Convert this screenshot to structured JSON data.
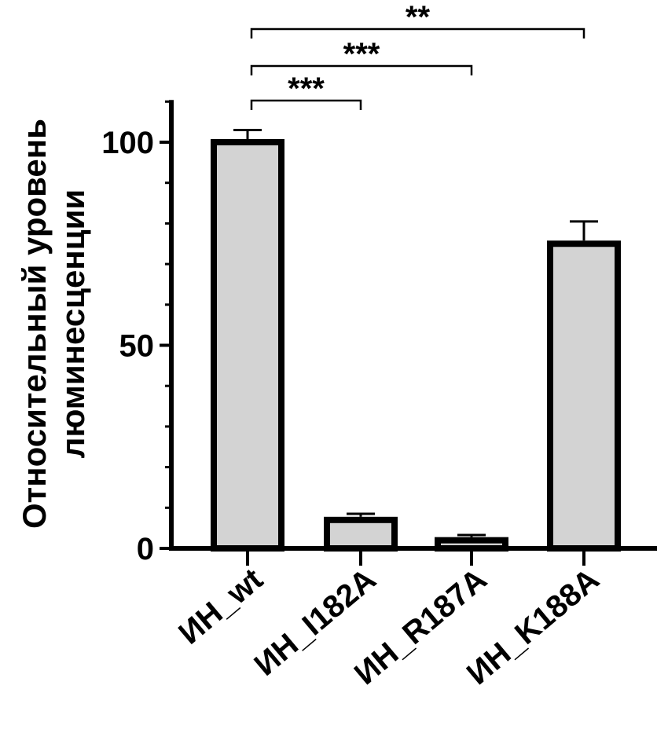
{
  "chart_data": {
    "type": "bar",
    "ylabel_lines": [
      "Относительный уровень",
      "люминесценции"
    ],
    "ylim": [
      0,
      110
    ],
    "yticks": [
      "0",
      "50",
      "100"
    ],
    "yticks_values": [
      0,
      50,
      100
    ],
    "minor_tick_step": 10,
    "categories": [
      "ИН_wt",
      "ИН_I182A",
      "ИН_R187A",
      "ИН_K188A"
    ],
    "values": [
      100,
      7,
      2,
      75
    ],
    "errors": [
      3,
      1.5,
      1.3,
      5.5
    ],
    "bar_color": "#d3d3d3",
    "significance": [
      {
        "from": 0,
        "to": 1,
        "label": "***"
      },
      {
        "from": 0,
        "to": 2,
        "label": "***"
      },
      {
        "from": 0,
        "to": 3,
        "label": "**"
      }
    ]
  }
}
